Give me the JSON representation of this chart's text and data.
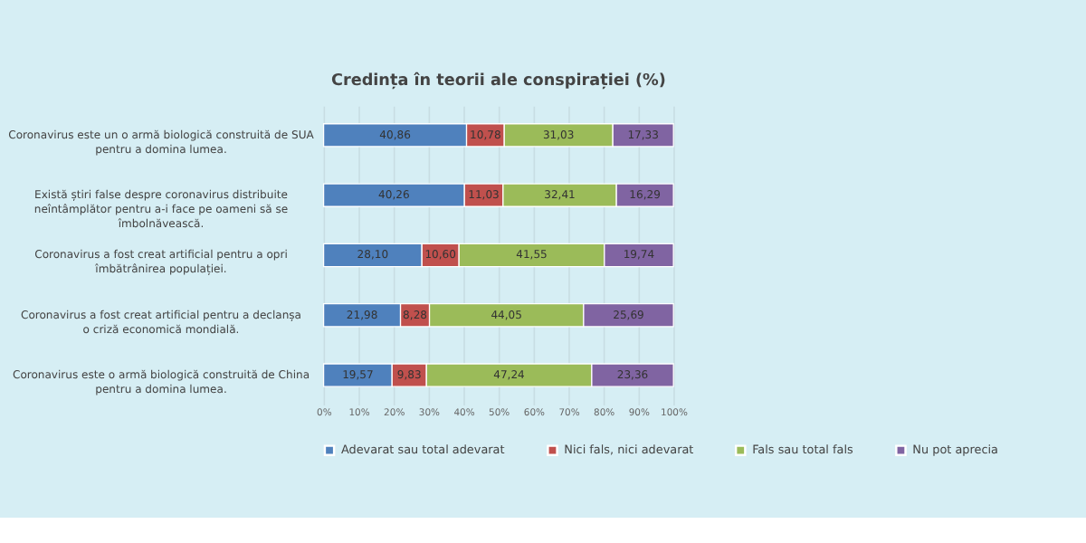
{
  "chart_data": {
    "type": "bar",
    "orientation": "horizontal",
    "stacked": true,
    "title": "Credința în teorii ale conspirației (%)",
    "categories": [
      "Coronavirus este un o armă biologică construită de SUA pentru a domina lumea.",
      "Există știri false despre coronavirus distribuite neîntâmplător pentru a-i face pe oameni să se îmbolnăvească.",
      "Coronavirus a fost creat artificial pentru a opri îmbătrânirea populației.",
      "Coronavirus a fost creat artificial pentru a declanșa o criză economică mondială.",
      "Coronavirus este o armă biologică construită de China pentru a domina lumea."
    ],
    "series": [
      {
        "name": "Adevarat sau total adevarat",
        "color": "#4f81bd",
        "values": [
          40.86,
          40.26,
          28.1,
          21.98,
          19.57
        ],
        "value_labels": [
          "40,86",
          "40,26",
          "28,10",
          "21,98",
          "19,57"
        ]
      },
      {
        "name": "Nici fals, nici adevarat",
        "color": "#c0504d",
        "values": [
          10.78,
          11.03,
          10.6,
          8.28,
          9.83
        ],
        "value_labels": [
          "10,78",
          "11,03",
          "10,60",
          "8,28",
          "9,83"
        ]
      },
      {
        "name": "Fals sau total fals",
        "color": "#9bbb59",
        "values": [
          31.03,
          32.41,
          41.55,
          44.05,
          47.24
        ],
        "value_labels": [
          "31,03",
          "32,41",
          "41,55",
          "44,05",
          "47,24"
        ]
      },
      {
        "name": "Nu pot aprecia",
        "color": "#8064a2",
        "values": [
          17.33,
          16.29,
          19.74,
          25.69,
          23.36
        ],
        "value_labels": [
          "17,33",
          "16,29",
          "19,74",
          "25,69",
          "23,36"
        ]
      }
    ],
    "xlim": [
      0,
      100
    ],
    "xticks": [
      {
        "value": 0,
        "label": "0%"
      },
      {
        "value": 10,
        "label": "10%"
      },
      {
        "value": 20,
        "label": "20%"
      },
      {
        "value": 30,
        "label": "30%"
      },
      {
        "value": 40,
        "label": "40%"
      },
      {
        "value": 50,
        "label": "50%"
      },
      {
        "value": 60,
        "label": "60%"
      },
      {
        "value": 70,
        "label": "70%"
      },
      {
        "value": 80,
        "label": "80%"
      },
      {
        "value": 90,
        "label": "90%"
      },
      {
        "value": 100,
        "label": "100%"
      }
    ],
    "grid": "x",
    "legend": "bottom"
  }
}
